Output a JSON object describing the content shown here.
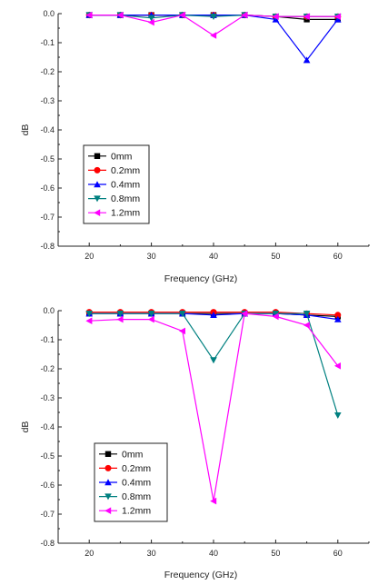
{
  "chart_data": [
    {
      "type": "line",
      "xlabel": "Frequency (GHz)",
      "ylabel": "dB",
      "xlim": [
        15,
        65
      ],
      "ylim": [
        -0.8,
        0.0
      ],
      "x": [
        20,
        25,
        30,
        35,
        40,
        45,
        50,
        55,
        60
      ],
      "xticks": [
        "20",
        "30",
        "40",
        "50",
        "60"
      ],
      "yticks": [
        "0.0",
        "-0.1",
        "-0.2",
        "-0.3",
        "-0.4",
        "-0.5",
        "-0.6",
        "-0.7",
        "-0.8"
      ],
      "legend_position": "bottom-left",
      "grid": false,
      "series": [
        {
          "name": "0mm",
          "color": "#000000",
          "marker": "square",
          "values": [
            -0.005,
            -0.005,
            -0.005,
            -0.005,
            -0.005,
            -0.005,
            -0.01,
            -0.02,
            -0.02
          ]
        },
        {
          "name": "0.2mm",
          "color": "#ff0000",
          "marker": "circle",
          "values": [
            -0.005,
            -0.005,
            -0.005,
            -0.005,
            -0.005,
            -0.005,
            -0.01,
            -0.01,
            -0.01
          ]
        },
        {
          "name": "0.4mm",
          "color": "#0000ff",
          "marker": "triangle-up",
          "values": [
            -0.005,
            -0.005,
            -0.005,
            -0.005,
            -0.005,
            -0.005,
            -0.02,
            -0.16,
            -0.02
          ]
        },
        {
          "name": "0.8mm",
          "color": "#008080",
          "marker": "triangle-down",
          "values": [
            -0.005,
            -0.005,
            -0.015,
            -0.005,
            -0.01,
            -0.005,
            -0.01,
            -0.01,
            -0.01
          ]
        },
        {
          "name": "1.2mm",
          "color": "#ff00ff",
          "marker": "triangle-left",
          "values": [
            -0.005,
            -0.005,
            -0.03,
            -0.005,
            -0.075,
            -0.005,
            -0.01,
            -0.01,
            -0.01
          ]
        }
      ]
    },
    {
      "type": "line",
      "xlabel": "Frequency (GHz)",
      "ylabel": "dB",
      "xlim": [
        15,
        65
      ],
      "ylim": [
        -0.8,
        0.0
      ],
      "x": [
        20,
        25,
        30,
        35,
        40,
        45,
        50,
        55,
        60
      ],
      "xticks": [
        "20",
        "30",
        "40",
        "50",
        "60"
      ],
      "yticks": [
        "0.0",
        "-0.1",
        "-0.2",
        "-0.3",
        "-0.4",
        "-0.5",
        "-0.6",
        "-0.7",
        "-0.8"
      ],
      "legend_position": "bottom-left",
      "grid": false,
      "series": [
        {
          "name": "0mm",
          "color": "#000000",
          "marker": "square",
          "values": [
            -0.01,
            -0.01,
            -0.01,
            -0.01,
            -0.01,
            -0.01,
            -0.01,
            -0.015,
            -0.02
          ]
        },
        {
          "name": "0.2mm",
          "color": "#ff0000",
          "marker": "circle",
          "values": [
            -0.005,
            -0.005,
            -0.005,
            -0.005,
            -0.005,
            -0.005,
            -0.005,
            -0.01,
            -0.015
          ]
        },
        {
          "name": "0.4mm",
          "color": "#0000ff",
          "marker": "triangle-up",
          "values": [
            -0.01,
            -0.01,
            -0.01,
            -0.01,
            -0.015,
            -0.01,
            -0.01,
            -0.015,
            -0.03
          ]
        },
        {
          "name": "0.8mm",
          "color": "#008080",
          "marker": "triangle-down",
          "values": [
            -0.01,
            -0.01,
            -0.01,
            -0.01,
            -0.17,
            -0.01,
            -0.01,
            -0.01,
            -0.36
          ]
        },
        {
          "name": "1.2mm",
          "color": "#ff00ff",
          "marker": "triangle-left",
          "values": [
            -0.035,
            -0.03,
            -0.03,
            -0.07,
            -0.655,
            -0.01,
            -0.02,
            -0.05,
            -0.19
          ]
        }
      ]
    }
  ]
}
